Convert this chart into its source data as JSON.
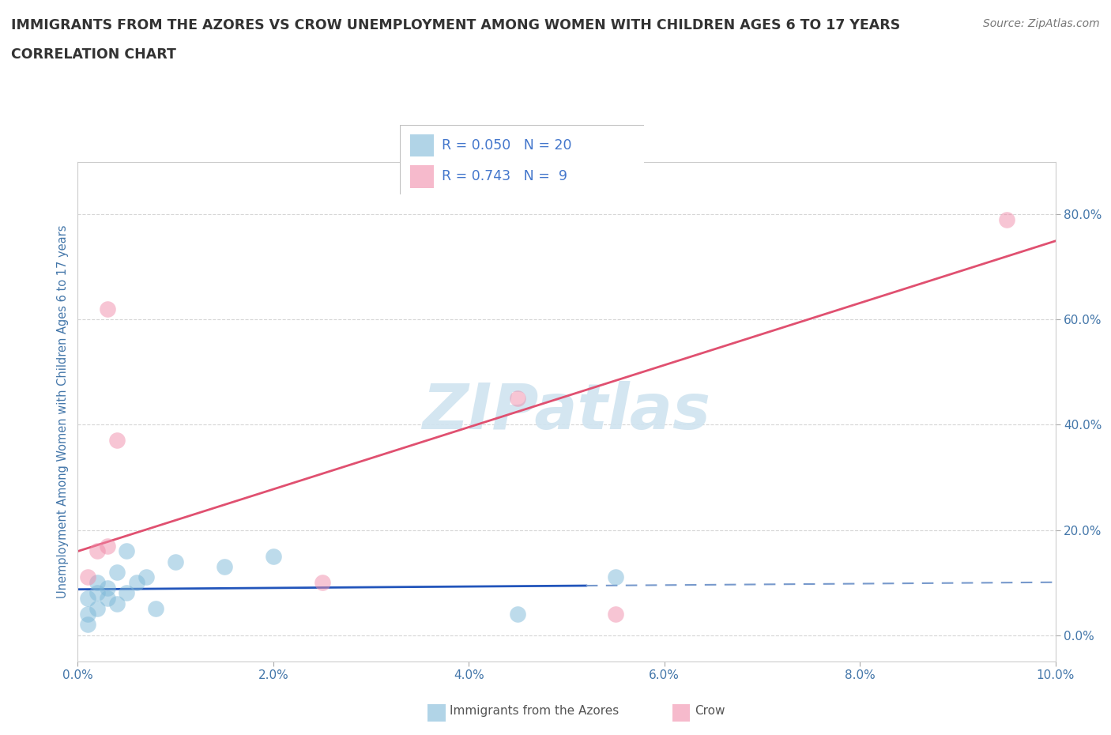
{
  "title": "IMMIGRANTS FROM THE AZORES VS CROW UNEMPLOYMENT AMONG WOMEN WITH CHILDREN AGES 6 TO 17 YEARS",
  "subtitle": "CORRELATION CHART",
  "source": "Source: ZipAtlas.com",
  "ylabel": "Unemployment Among Women with Children Ages 6 to 17 years",
  "xlim": [
    0.0,
    0.1
  ],
  "ylim": [
    -0.05,
    0.9
  ],
  "xticks": [
    0.0,
    0.02,
    0.04,
    0.06,
    0.08,
    0.1
  ],
  "yticks": [
    0.0,
    0.2,
    0.4,
    0.6,
    0.8
  ],
  "xticklabels": [
    "0.0%",
    "2.0%",
    "4.0%",
    "6.0%",
    "8.0%",
    "10.0%"
  ],
  "yticklabels": [
    "0.0%",
    "20.0%",
    "40.0%",
    "60.0%",
    "80.0%"
  ],
  "azores_color": "#7db8d8",
  "crow_color": "#f08caa",
  "azores_R": 0.05,
  "azores_N": 20,
  "crow_R": 0.743,
  "crow_N": 9,
  "azores_x": [
    0.001,
    0.001,
    0.001,
    0.002,
    0.002,
    0.002,
    0.003,
    0.003,
    0.004,
    0.004,
    0.005,
    0.005,
    0.006,
    0.007,
    0.008,
    0.01,
    0.015,
    0.02,
    0.045,
    0.055
  ],
  "azores_y": [
    0.02,
    0.04,
    0.07,
    0.08,
    0.05,
    0.1,
    0.07,
    0.09,
    0.06,
    0.12,
    0.16,
    0.08,
    0.1,
    0.11,
    0.05,
    0.14,
    0.13,
    0.15,
    0.04,
    0.11
  ],
  "crow_x": [
    0.001,
    0.002,
    0.003,
    0.003,
    0.004,
    0.025,
    0.045,
    0.055,
    0.095
  ],
  "crow_y": [
    0.11,
    0.16,
    0.17,
    0.62,
    0.37,
    0.1,
    0.45,
    0.04,
    0.79
  ],
  "azores_line_color": "#2255bb",
  "azores_line_color_dash": "#7799cc",
  "crow_line_color": "#e05070",
  "watermark": "ZIPatlas",
  "watermark_color": "#d0e4f0",
  "grid_color": "#cccccc",
  "title_color": "#333333",
  "axis_label_color": "#4477aa",
  "tick_label_color": "#4477aa",
  "legend_color": "#4477cc",
  "source_color": "#777777",
  "bg_color": "#ffffff"
}
